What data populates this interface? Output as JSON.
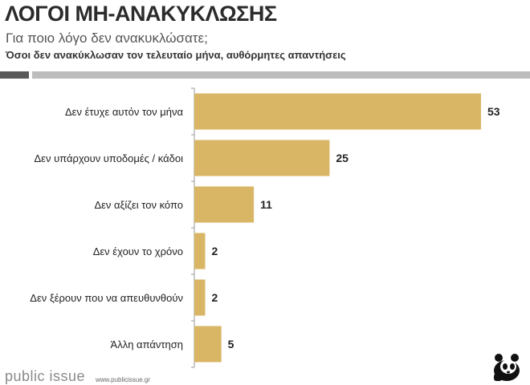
{
  "header": {
    "title": "ΛΟΓΟΙ ΜΗ-ΑΝΑΚΥΚΛΩΣΗΣ",
    "subtitle": "Για ποιο λόγο δεν ανακυκλώσατε;",
    "note": "Όσοι δεν ανακύκλωσαν τον τελευταίο μήνα, αυθόρμητες απαντήσεις"
  },
  "colors": {
    "bar": "#D9B665",
    "axis": "#999999"
  },
  "chart_data": {
    "type": "bar",
    "orientation": "horizontal",
    "categories": [
      "Δεν έτυχε αυτόν τον μήνα",
      "Δεν υπάρχουν υποδομές / κάδοι",
      "Δεν αξίζει τον κόπο",
      "Δεν έχουν το χρόνο",
      "Δεν ξέρουν που να απευθυνθούν",
      "Άλλη απάντηση"
    ],
    "values": [
      53,
      25,
      11,
      2,
      2,
      5
    ],
    "title": "",
    "xlabel": "",
    "ylabel": "",
    "xlim": [
      0,
      60
    ]
  },
  "footer": {
    "brand": "public issue",
    "url": "www.publicissue.gr",
    "logo_icon": "panda-icon"
  }
}
